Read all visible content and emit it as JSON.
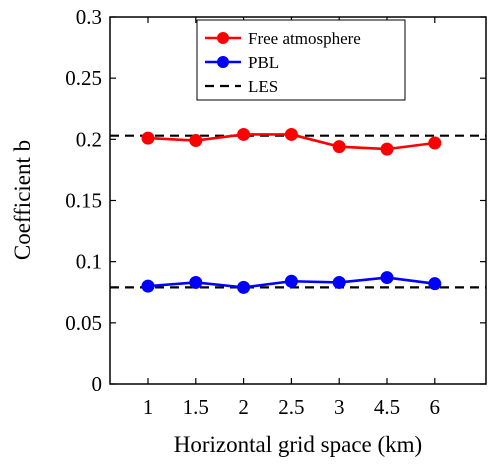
{
  "chart_data": {
    "type": "line",
    "title": "",
    "xlabel": "Horizontal grid space (km)",
    "ylabel": "Coefficient b",
    "categories": [
      "1",
      "1.5",
      "2",
      "2.5",
      "3",
      "4.5",
      "6"
    ],
    "ylim": [
      0,
      0.3
    ],
    "yticks": [
      "0",
      "0.05",
      "0.1",
      "0.15",
      "0.2",
      "0.25",
      "0.3"
    ],
    "grid": false,
    "legend_position": "top-right",
    "series": [
      {
        "name": "Free atmosphere",
        "color": "#ff0000",
        "marker": "circle",
        "line_style": "solid",
        "values": [
          0.201,
          0.199,
          0.204,
          0.204,
          0.194,
          0.192,
          0.197
        ]
      },
      {
        "name": "PBL",
        "color": "#0000ff",
        "marker": "circle",
        "line_style": "solid",
        "values": [
          0.08,
          0.083,
          0.079,
          0.084,
          0.083,
          0.087,
          0.082
        ]
      }
    ],
    "reference_lines": [
      {
        "name": "LES",
        "color": "#000000",
        "line_style": "dashed",
        "values": [
          0.203,
          0.079
        ]
      }
    ]
  }
}
